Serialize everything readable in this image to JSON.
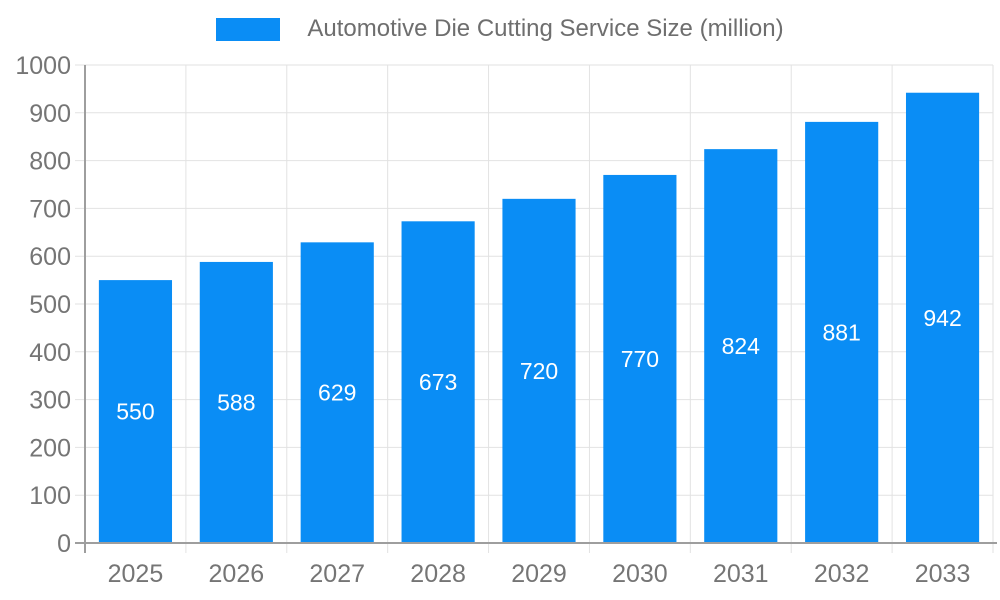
{
  "chart_data": {
    "type": "bar",
    "title": "Automotive Die Cutting Service Size (million)",
    "categories": [
      "2025",
      "2026",
      "2027",
      "2028",
      "2029",
      "2030",
      "2031",
      "2032",
      "2033"
    ],
    "values": [
      550,
      588,
      629,
      673,
      720,
      770,
      824,
      881,
      942
    ],
    "xlabel": "",
    "ylabel": "",
    "ylim": [
      0,
      1000
    ],
    "ytick_step": 100,
    "grid": true,
    "legend_position": "top-center",
    "value_labels": "inside-center-white",
    "colors": {
      "bar": "#0a8df5",
      "value_label": "#ffffff",
      "axis": "#9e9e9e",
      "gridline": "#e2e2e2",
      "tick_label": "#757575",
      "legend_text": "#6e6e6e",
      "background": "#ffffff"
    }
  }
}
